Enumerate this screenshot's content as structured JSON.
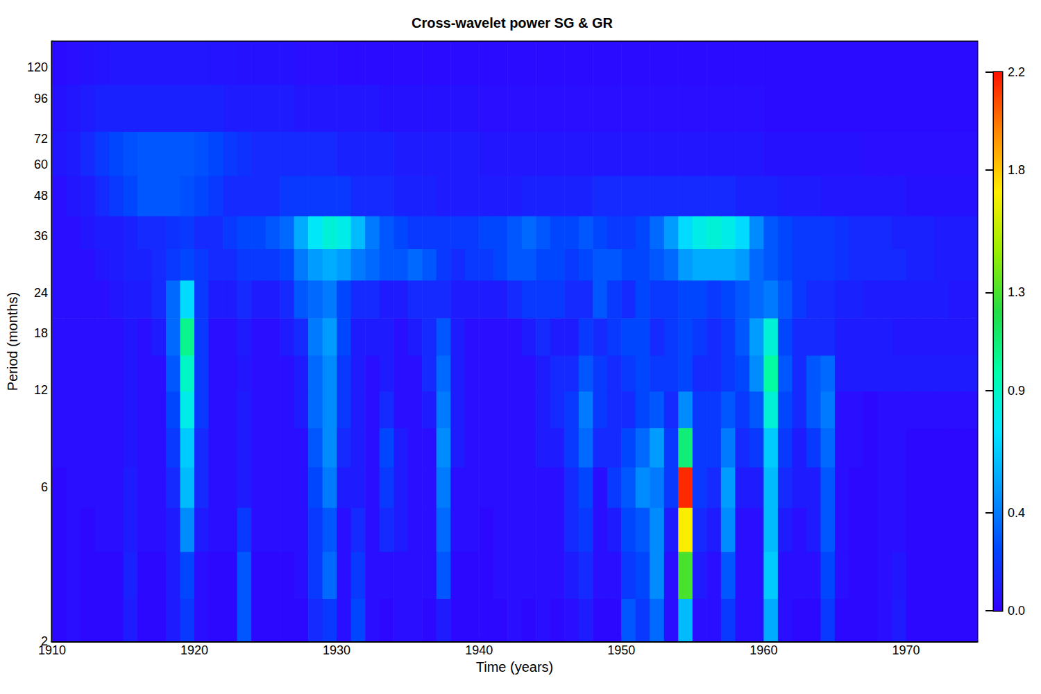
{
  "chart_data": {
    "type": "heatmap",
    "title": "Cross-wavelet power SG & GR",
    "xlabel": "Time (years)",
    "ylabel": "Period (months)",
    "log": "y",
    "xlim": [
      1910,
      1975
    ],
    "xticks": [
      1910,
      1920,
      1930,
      1940,
      1950,
      1960,
      1970
    ],
    "ylim": [
      2,
      144
    ],
    "yticks": [
      2,
      6,
      12,
      18,
      24,
      36,
      48,
      60,
      72,
      96,
      120
    ],
    "x": [
      1910.5,
      1911.5,
      1912.5,
      1913.5,
      1914.5,
      1915.5,
      1916.5,
      1917.5,
      1918.5,
      1919.5,
      1920.5,
      1921.5,
      1922.5,
      1923.5,
      1924.5,
      1925.5,
      1926.5,
      1927.5,
      1928.5,
      1929.5,
      1930.5,
      1931.5,
      1932.5,
      1933.5,
      1934.5,
      1935.5,
      1936.5,
      1937.5,
      1938.5,
      1939.5,
      1940.5,
      1941.5,
      1942.5,
      1943.5,
      1944.5,
      1945.5,
      1946.5,
      1947.5,
      1948.5,
      1949.5,
      1950.5,
      1951.5,
      1952.5,
      1953.5,
      1954.5,
      1955.5,
      1956.5,
      1957.5,
      1958.5,
      1959.5,
      1960.5,
      1961.5,
      1962.5,
      1963.5,
      1964.5,
      1965.5,
      1966.5,
      1967.5,
      1968.5,
      1969.5,
      1970.5,
      1971.5,
      1972.5,
      1973.5,
      1974.5
    ],
    "y": [
      2.3,
      3.2,
      4.5,
      6,
      8,
      10.5,
      13.5,
      17.5,
      23,
      30,
      36,
      48,
      64,
      90,
      125
    ],
    "z": [
      [
        0.03,
        0.05,
        0.03,
        0.03,
        0.03,
        0.1,
        0.03,
        0.03,
        0.1,
        0.2,
        0.05,
        0.03,
        0.03,
        0.3,
        0.03,
        0.03,
        0.03,
        0.03,
        0.15,
        0.2,
        0.05,
        0.25,
        0.05,
        0.03,
        0.05,
        0.05,
        0.03,
        0.1,
        0.03,
        0.03,
        0.03,
        0.03,
        0.05,
        0.03,
        0.05,
        0.03,
        0.05,
        0.1,
        0.03,
        0.03,
        0.3,
        0.2,
        0.35,
        0.05,
        0.6,
        0.05,
        0.05,
        0.2,
        0.05,
        0.05,
        0.55,
        0.05,
        0.03,
        0.03,
        0.2,
        0.03,
        0.03,
        0.03,
        0.05,
        0.1,
        0.03,
        0.03,
        0.03,
        0.03,
        0.03
      ],
      [
        0.03,
        0.05,
        0.03,
        0.03,
        0.03,
        0.12,
        0.03,
        0.03,
        0.1,
        0.25,
        0.05,
        0.03,
        0.03,
        0.3,
        0.03,
        0.03,
        0.03,
        0.05,
        0.2,
        0.35,
        0.05,
        0.2,
        0.05,
        0.05,
        0.05,
        0.05,
        0.05,
        0.3,
        0.03,
        0.03,
        0.03,
        0.05,
        0.05,
        0.05,
        0.05,
        0.05,
        0.1,
        0.15,
        0.05,
        0.05,
        0.2,
        0.25,
        0.45,
        0.05,
        1.3,
        0.1,
        0.05,
        0.3,
        0.05,
        0.05,
        0.65,
        0.05,
        0.05,
        0.05,
        0.25,
        0.05,
        0.03,
        0.03,
        0.05,
        0.08,
        0.03,
        0.03,
        0.03,
        0.03,
        0.03
      ],
      [
        0.03,
        0.05,
        0.03,
        0.05,
        0.05,
        0.1,
        0.05,
        0.05,
        0.1,
        0.45,
        0.1,
        0.05,
        0.05,
        0.2,
        0.05,
        0.05,
        0.05,
        0.05,
        0.2,
        0.3,
        0.05,
        0.15,
        0.05,
        0.15,
        0.1,
        0.05,
        0.05,
        0.35,
        0.05,
        0.05,
        0.03,
        0.05,
        0.05,
        0.05,
        0.05,
        0.05,
        0.15,
        0.2,
        0.05,
        0.1,
        0.25,
        0.3,
        0.45,
        0.1,
        1.7,
        0.15,
        0.1,
        0.45,
        0.05,
        0.05,
        0.6,
        0.1,
        0.05,
        0.1,
        0.3,
        0.05,
        0.03,
        0.03,
        0.05,
        0.05,
        0.03,
        0.03,
        0.03,
        0.03,
        0.03
      ],
      [
        0.03,
        0.05,
        0.05,
        0.05,
        0.05,
        0.1,
        0.05,
        0.05,
        0.15,
        0.6,
        0.15,
        0.05,
        0.05,
        0.1,
        0.05,
        0.05,
        0.05,
        0.05,
        0.25,
        0.4,
        0.1,
        0.1,
        0.05,
        0.2,
        0.1,
        0.05,
        0.05,
        0.4,
        0.05,
        0.05,
        0.05,
        0.05,
        0.05,
        0.05,
        0.05,
        0.05,
        0.15,
        0.25,
        0.05,
        0.2,
        0.3,
        0.45,
        0.4,
        0.2,
        2.15,
        0.2,
        0.15,
        0.5,
        0.1,
        0.1,
        0.6,
        0.15,
        0.1,
        0.1,
        0.3,
        0.05,
        0.03,
        0.03,
        0.05,
        0.05,
        0.03,
        0.03,
        0.03,
        0.03,
        0.03
      ],
      [
        0.05,
        0.05,
        0.05,
        0.05,
        0.05,
        0.08,
        0.05,
        0.05,
        0.2,
        0.65,
        0.15,
        0.05,
        0.05,
        0.1,
        0.05,
        0.05,
        0.05,
        0.05,
        0.3,
        0.45,
        0.15,
        0.1,
        0.05,
        0.25,
        0.1,
        0.05,
        0.05,
        0.45,
        0.1,
        0.05,
        0.05,
        0.05,
        0.05,
        0.05,
        0.1,
        0.1,
        0.2,
        0.35,
        0.15,
        0.15,
        0.25,
        0.35,
        0.5,
        0.2,
        1.1,
        0.2,
        0.2,
        0.4,
        0.15,
        0.2,
        0.65,
        0.2,
        0.1,
        0.2,
        0.35,
        0.05,
        0.05,
        0.03,
        0.05,
        0.05,
        0.03,
        0.03,
        0.03,
        0.03,
        0.03
      ],
      [
        0.05,
        0.05,
        0.05,
        0.05,
        0.05,
        0.08,
        0.05,
        0.05,
        0.25,
        0.8,
        0.2,
        0.05,
        0.05,
        0.1,
        0.05,
        0.05,
        0.05,
        0.1,
        0.35,
        0.45,
        0.2,
        0.1,
        0.05,
        0.15,
        0.05,
        0.05,
        0.1,
        0.4,
        0.1,
        0.05,
        0.05,
        0.05,
        0.05,
        0.05,
        0.1,
        0.15,
        0.2,
        0.4,
        0.2,
        0.15,
        0.15,
        0.25,
        0.3,
        0.15,
        0.45,
        0.2,
        0.2,
        0.3,
        0.2,
        0.3,
        0.85,
        0.25,
        0.15,
        0.3,
        0.4,
        0.05,
        0.05,
        0.03,
        0.05,
        0.05,
        0.05,
        0.05,
        0.05,
        0.05,
        0.05
      ],
      [
        0.05,
        0.05,
        0.05,
        0.05,
        0.05,
        0.08,
        0.05,
        0.05,
        0.3,
        0.9,
        0.2,
        0.05,
        0.05,
        0.08,
        0.05,
        0.05,
        0.05,
        0.1,
        0.35,
        0.45,
        0.2,
        0.1,
        0.05,
        0.1,
        0.05,
        0.05,
        0.15,
        0.35,
        0.1,
        0.05,
        0.05,
        0.05,
        0.05,
        0.05,
        0.1,
        0.15,
        0.15,
        0.3,
        0.2,
        0.15,
        0.2,
        0.25,
        0.2,
        0.2,
        0.25,
        0.15,
        0.15,
        0.2,
        0.25,
        0.45,
        1.0,
        0.3,
        0.15,
        0.3,
        0.35,
        0.1,
        0.1,
        0.1,
        0.1,
        0.1,
        0.1,
        0.1,
        0.1,
        0.1,
        0.1
      ],
      [
        0.05,
        0.05,
        0.05,
        0.05,
        0.05,
        0.08,
        0.05,
        0.1,
        0.35,
        1.05,
        0.2,
        0.05,
        0.05,
        0.1,
        0.05,
        0.05,
        0.1,
        0.15,
        0.4,
        0.5,
        0.25,
        0.1,
        0.1,
        0.1,
        0.05,
        0.1,
        0.15,
        0.3,
        0.1,
        0.05,
        0.05,
        0.05,
        0.05,
        0.1,
        0.15,
        0.1,
        0.1,
        0.2,
        0.15,
        0.2,
        0.25,
        0.25,
        0.15,
        0.2,
        0.25,
        0.2,
        0.15,
        0.2,
        0.3,
        0.5,
        0.85,
        0.25,
        0.15,
        0.15,
        0.15,
        0.1,
        0.1,
        0.1,
        0.1,
        0.08,
        0.08,
        0.08,
        0.08,
        0.08,
        0.08
      ],
      [
        0.05,
        0.05,
        0.05,
        0.05,
        0.08,
        0.1,
        0.1,
        0.15,
        0.35,
        0.7,
        0.2,
        0.1,
        0.1,
        0.15,
        0.1,
        0.1,
        0.15,
        0.3,
        0.35,
        0.4,
        0.25,
        0.15,
        0.15,
        0.1,
        0.1,
        0.15,
        0.15,
        0.15,
        0.1,
        0.1,
        0.1,
        0.1,
        0.15,
        0.2,
        0.2,
        0.2,
        0.15,
        0.15,
        0.3,
        0.2,
        0.15,
        0.25,
        0.2,
        0.2,
        0.25,
        0.25,
        0.2,
        0.25,
        0.3,
        0.35,
        0.4,
        0.3,
        0.2,
        0.15,
        0.15,
        0.12,
        0.12,
        0.1,
        0.1,
        0.1,
        0.1,
        0.1,
        0.1,
        0.08,
        0.08
      ],
      [
        0.05,
        0.05,
        0.05,
        0.08,
        0.1,
        0.12,
        0.12,
        0.15,
        0.2,
        0.25,
        0.2,
        0.15,
        0.15,
        0.2,
        0.2,
        0.2,
        0.25,
        0.4,
        0.5,
        0.55,
        0.5,
        0.4,
        0.35,
        0.3,
        0.3,
        0.35,
        0.3,
        0.2,
        0.15,
        0.2,
        0.2,
        0.25,
        0.3,
        0.3,
        0.25,
        0.25,
        0.2,
        0.25,
        0.3,
        0.3,
        0.25,
        0.25,
        0.3,
        0.35,
        0.5,
        0.55,
        0.55,
        0.55,
        0.5,
        0.35,
        0.3,
        0.25,
        0.2,
        0.2,
        0.2,
        0.18,
        0.15,
        0.15,
        0.15,
        0.15,
        0.12,
        0.12,
        0.1,
        0.1,
        0.1
      ],
      [
        0.05,
        0.05,
        0.08,
        0.1,
        0.1,
        0.12,
        0.15,
        0.15,
        0.18,
        0.2,
        0.15,
        0.15,
        0.2,
        0.25,
        0.25,
        0.3,
        0.35,
        0.55,
        0.75,
        0.85,
        0.8,
        0.6,
        0.4,
        0.3,
        0.25,
        0.2,
        0.2,
        0.2,
        0.2,
        0.2,
        0.25,
        0.25,
        0.3,
        0.35,
        0.3,
        0.25,
        0.25,
        0.3,
        0.25,
        0.2,
        0.2,
        0.25,
        0.35,
        0.5,
        0.7,
        0.8,
        0.85,
        0.8,
        0.7,
        0.45,
        0.3,
        0.25,
        0.2,
        0.2,
        0.2,
        0.18,
        0.15,
        0.15,
        0.15,
        0.12,
        0.12,
        0.12,
        0.1,
        0.1,
        0.1
      ],
      [
        0.05,
        0.08,
        0.1,
        0.15,
        0.2,
        0.25,
        0.3,
        0.3,
        0.3,
        0.28,
        0.25,
        0.2,
        0.15,
        0.15,
        0.15,
        0.15,
        0.2,
        0.2,
        0.2,
        0.2,
        0.2,
        0.15,
        0.15,
        0.15,
        0.12,
        0.12,
        0.12,
        0.1,
        0.1,
        0.1,
        0.1,
        0.1,
        0.1,
        0.12,
        0.12,
        0.12,
        0.12,
        0.12,
        0.15,
        0.15,
        0.15,
        0.15,
        0.15,
        0.15,
        0.15,
        0.15,
        0.15,
        0.15,
        0.12,
        0.12,
        0.12,
        0.1,
        0.1,
        0.1,
        0.08,
        0.08,
        0.08,
        0.08,
        0.08,
        0.08,
        0.06,
        0.06,
        0.06,
        0.06,
        0.06
      ],
      [
        0.08,
        0.1,
        0.15,
        0.2,
        0.25,
        0.28,
        0.3,
        0.3,
        0.3,
        0.3,
        0.28,
        0.25,
        0.2,
        0.18,
        0.15,
        0.15,
        0.15,
        0.15,
        0.15,
        0.15,
        0.12,
        0.12,
        0.12,
        0.12,
        0.1,
        0.1,
        0.1,
        0.1,
        0.1,
        0.1,
        0.08,
        0.08,
        0.08,
        0.08,
        0.08,
        0.08,
        0.08,
        0.08,
        0.08,
        0.08,
        0.08,
        0.08,
        0.08,
        0.08,
        0.08,
        0.08,
        0.08,
        0.08,
        0.08,
        0.08,
        0.06,
        0.06,
        0.06,
        0.06,
        0.06,
        0.06,
        0.06,
        0.05,
        0.05,
        0.05,
        0.05,
        0.05,
        0.05,
        0.05,
        0.05
      ],
      [
        0.06,
        0.08,
        0.1,
        0.12,
        0.12,
        0.12,
        0.12,
        0.12,
        0.12,
        0.12,
        0.12,
        0.12,
        0.1,
        0.1,
        0.1,
        0.1,
        0.1,
        0.08,
        0.08,
        0.08,
        0.08,
        0.08,
        0.08,
        0.06,
        0.06,
        0.06,
        0.06,
        0.06,
        0.06,
        0.06,
        0.05,
        0.05,
        0.05,
        0.05,
        0.05,
        0.05,
        0.05,
        0.05,
        0.05,
        0.05,
        0.05,
        0.05,
        0.05,
        0.05,
        0.05,
        0.05,
        0.05,
        0.05,
        0.05,
        0.05,
        0.04,
        0.04,
        0.04,
        0.04,
        0.04,
        0.04,
        0.04,
        0.04,
        0.04,
        0.04,
        0.04,
        0.04,
        0.04,
        0.04,
        0.04
      ],
      [
        0.04,
        0.05,
        0.06,
        0.07,
        0.08,
        0.08,
        0.08,
        0.08,
        0.08,
        0.08,
        0.08,
        0.07,
        0.07,
        0.06,
        0.06,
        0.06,
        0.06,
        0.05,
        0.05,
        0.05,
        0.04,
        0.04,
        0.04,
        0.04,
        0.04,
        0.04,
        0.04,
        0.04,
        0.04,
        0.04,
        0.04,
        0.04,
        0.04,
        0.04,
        0.04,
        0.04,
        0.04,
        0.04,
        0.04,
        0.04,
        0.04,
        0.04,
        0.04,
        0.04,
        0.04,
        0.04,
        0.04,
        0.04,
        0.04,
        0.04,
        0.04,
        0.04,
        0.04,
        0.04,
        0.04,
        0.04,
        0.04,
        0.04,
        0.04,
        0.04,
        0.04,
        0.04,
        0.04,
        0.04,
        0.04
      ]
    ],
    "colorbar": {
      "range": [
        0,
        2.2
      ],
      "ticks": [
        {
          "value": 0,
          "label": "0.0"
        },
        0.4,
        0.9,
        1.3,
        1.8,
        2.2
      ]
    }
  }
}
